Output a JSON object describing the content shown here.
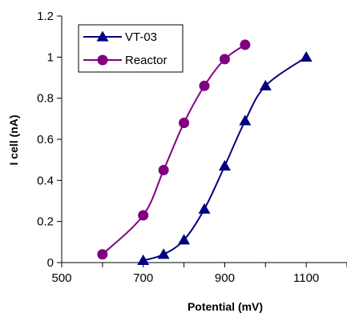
{
  "chart_data": {
    "type": "line",
    "xlabel": "Potential (mV)",
    "ylabel": "I cell (nA)",
    "xlim": [
      500,
      1200
    ],
    "ylim": [
      0,
      1.2
    ],
    "x_ticks": [
      "500",
      "700",
      "900",
      "1100"
    ],
    "y_ticks": [
      "0",
      "0.2",
      "0.4",
      "0.6",
      "0.8",
      "1",
      "1.2"
    ],
    "x_tick_values": [
      500,
      700,
      900,
      1100
    ],
    "y_tick_values": [
      0,
      0.2,
      0.4,
      0.6,
      0.8,
      1.0,
      1.2
    ],
    "grid": false,
    "legend_position": "top-left",
    "series": [
      {
        "name": "VT-03",
        "marker": "triangle",
        "color": "#000080",
        "x": [
          700,
          750,
          800,
          850,
          900,
          950,
          1000,
          1100
        ],
        "y": [
          0.01,
          0.04,
          0.11,
          0.26,
          0.47,
          0.69,
          0.86,
          1.0
        ]
      },
      {
        "name": "Reactor",
        "marker": "circle",
        "color": "#800080",
        "x": [
          600,
          700,
          750,
          800,
          850,
          900,
          950
        ],
        "y": [
          0.04,
          0.23,
          0.45,
          0.68,
          0.86,
          0.99,
          1.06
        ]
      }
    ]
  }
}
